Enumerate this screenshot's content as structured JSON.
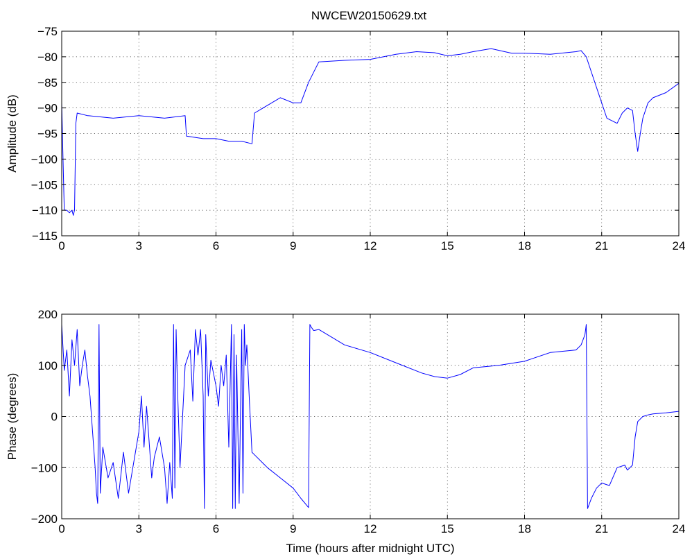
{
  "figure": {
    "title": "NWCEW20150629.txt"
  },
  "chart_data": [
    {
      "type": "line",
      "title": "NWCEW20150629.txt",
      "xlabel": "",
      "ylabel": "Amplitude (dB)",
      "xlim": [
        0,
        24
      ],
      "ylim": [
        -115,
        -75
      ],
      "xticks": [
        0,
        3,
        6,
        9,
        12,
        15,
        18,
        21,
        24
      ],
      "yticks": [
        -115,
        -110,
        -105,
        -100,
        -95,
        -90,
        -85,
        -80,
        -75
      ],
      "grid": true,
      "series": [
        {
          "color": "#0000ff",
          "x": [
            0,
            0.05,
            0.1,
            0.2,
            0.3,
            0.4,
            0.45,
            0.5,
            0.55,
            0.6,
            1,
            2,
            3,
            4,
            4.8,
            4.85,
            5.5,
            6,
            6.5,
            7,
            7.4,
            7.5,
            8,
            8.5,
            9,
            9.3,
            9.6,
            10,
            11,
            12,
            13,
            13.8,
            14.5,
            15,
            15.5,
            16,
            16.7,
            17.5,
            18,
            19,
            20,
            20.2,
            20.4,
            20.8,
            21.2,
            21.6,
            21.8,
            22,
            22.2,
            22.3,
            22.4,
            22.5,
            22.6,
            22.8,
            23,
            23.5,
            24
          ],
          "y": [
            -89,
            -100,
            -110,
            -110,
            -110.5,
            -110,
            -111,
            -110,
            -93,
            -91,
            -91.5,
            -92,
            -91.5,
            -92,
            -91.5,
            -95.5,
            -96,
            -96,
            -96.5,
            -96.5,
            -97,
            -91,
            -89.5,
            -88,
            -89,
            -89,
            -85,
            -81,
            -80.7,
            -80.5,
            -79.5,
            -79,
            -79.2,
            -79.8,
            -79.5,
            -79,
            -78.4,
            -79.3,
            -79.3,
            -79.5,
            -79,
            -78.8,
            -80,
            -86,
            -92,
            -93,
            -91,
            -90,
            -90.5,
            -95,
            -98.5,
            -95,
            -92,
            -89,
            -88,
            -87,
            -85.2
          ]
        }
      ]
    },
    {
      "type": "line",
      "title": "",
      "xlabel": "Time (hours after midnight UTC)",
      "ylabel": "Phase (degrees)",
      "xlim": [
        0,
        24
      ],
      "ylim": [
        -200,
        200
      ],
      "xticks": [
        0,
        3,
        6,
        9,
        12,
        15,
        18,
        21,
        24
      ],
      "yticks": [
        -200,
        -100,
        0,
        100,
        200
      ],
      "grid": true,
      "series": [
        {
          "color": "#0000ff",
          "x": [
            0,
            0.1,
            0.2,
            0.3,
            0.4,
            0.5,
            0.6,
            0.7,
            0.8,
            0.9,
            1,
            1.1,
            1.2,
            1.3,
            1.35,
            1.4,
            1.45,
            1.5,
            1.6,
            1.8,
            2,
            2.2,
            2.4,
            2.6,
            2.8,
            3,
            3.1,
            3.2,
            3.3,
            3.4,
            3.5,
            3.6,
            3.8,
            4,
            4.1,
            4.2,
            4.3,
            4.35,
            4.4,
            4.45,
            4.5,
            4.6,
            4.8,
            5,
            5.1,
            5.2,
            5.3,
            5.4,
            5.5,
            5.55,
            5.6,
            5.65,
            5.7,
            5.8,
            6,
            6.1,
            6.2,
            6.3,
            6.4,
            6.5,
            6.6,
            6.65,
            6.7,
            6.75,
            6.8,
            6.9,
            7,
            7.05,
            7.1,
            7.15,
            7.2,
            7.3,
            7.4,
            7.5,
            8,
            8.5,
            9,
            9.3,
            9.6,
            9.65,
            9.7,
            9.8,
            10,
            10.5,
            11,
            12,
            13,
            14,
            14.5,
            15,
            15.5,
            16,
            17,
            18,
            19,
            20,
            20.2,
            20.35,
            20.4,
            20.45,
            20.6,
            20.8,
            21,
            21.3,
            21.6,
            21.9,
            22,
            22.2,
            22.3,
            22.4,
            22.5,
            22.6,
            22.8,
            23,
            23.5,
            24
          ],
          "y": [
            180,
            90,
            130,
            40,
            150,
            100,
            170,
            60,
            100,
            130,
            80,
            40,
            -30,
            -100,
            -150,
            -170,
            180,
            -150,
            -60,
            -120,
            -90,
            -160,
            -70,
            -150,
            -90,
            -30,
            40,
            -60,
            20,
            -50,
            -120,
            -80,
            -40,
            -100,
            -170,
            -90,
            -160,
            180,
            -140,
            170,
            60,
            -100,
            100,
            130,
            30,
            170,
            120,
            170,
            40,
            -180,
            160,
            100,
            40,
            110,
            60,
            20,
            100,
            60,
            120,
            -60,
            180,
            -180,
            160,
            -180,
            120,
            -170,
            170,
            -150,
            180,
            100,
            140,
            30,
            -70,
            -75,
            -100,
            -120,
            -140,
            -160,
            -178,
            180,
            175,
            168,
            170,
            155,
            140,
            125,
            105,
            85,
            78,
            75,
            82,
            95,
            100,
            108,
            125,
            130,
            140,
            160,
            180,
            -180,
            -160,
            -140,
            -130,
            -135,
            -100,
            -95,
            -105,
            -95,
            -40,
            -10,
            -5,
            0,
            3,
            5,
            7,
            10
          ]
        }
      ]
    }
  ]
}
